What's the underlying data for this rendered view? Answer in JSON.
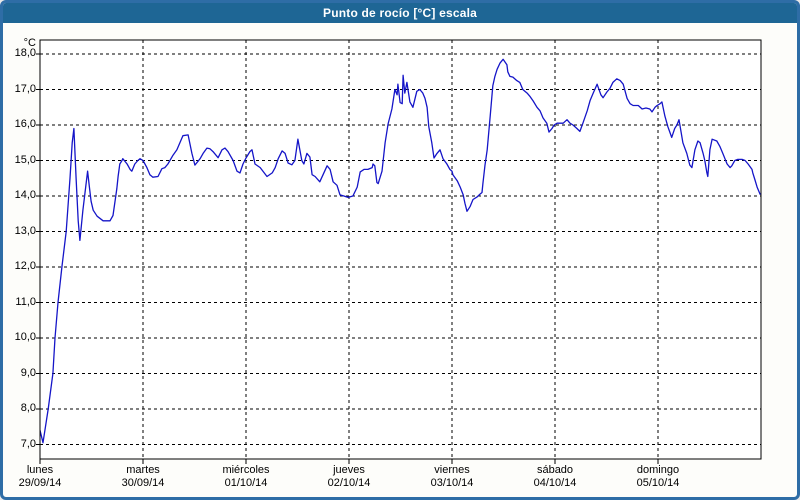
{
  "window": {
    "title": "Punto de rocío [°C] escala"
  },
  "colors": {
    "titlebar_bg": "#1e6695",
    "titlebar_text": "#ffffff",
    "window_border": "#2e6da6",
    "background": "#fdfdfa",
    "plot_background": "#ffffff",
    "grid_color": "#000000",
    "axis_color": "#000000",
    "series_color": "#1515c8"
  },
  "chart_data": {
    "type": "line",
    "title": "Punto de rocío [°C] escala",
    "ylabel": "°C",
    "unit_label": "°C",
    "y_tick_labels": [
      "18,0",
      "17,0",
      "16,0",
      "15,0",
      "14,0",
      "13,0",
      "12,0",
      "11,0",
      "10,0",
      "9,0",
      "8,0",
      "7,0"
    ],
    "y_tick_values": [
      18,
      17,
      16,
      15,
      14,
      13,
      12,
      11,
      10,
      9,
      8,
      7
    ],
    "ylim": [
      6.6,
      18.45
    ],
    "xlim_hours": [
      0,
      168
    ],
    "grid": "dashed",
    "legend_position": "none",
    "days": [
      {
        "name": "lunes",
        "date": "29/09/14"
      },
      {
        "name": "martes",
        "date": "30/09/14"
      },
      {
        "name": "miércoles",
        "date": "01/10/14"
      },
      {
        "name": "jueves",
        "date": "02/10/14"
      },
      {
        "name": "viernes",
        "date": "03/10/14"
      },
      {
        "name": "sábado",
        "date": "04/10/14"
      },
      {
        "name": "domingo",
        "date": "05/10/14"
      }
    ],
    "series": [
      {
        "name": "Punto de rocío",
        "color": "#1515c8",
        "points_hours_value": [
          [
            0,
            7.4
          ],
          [
            0.7,
            7.05
          ],
          [
            1.9,
            8.0
          ],
          [
            3.0,
            9.0
          ],
          [
            3.5,
            10.0
          ],
          [
            4.2,
            11.0
          ],
          [
            5.1,
            12.0
          ],
          [
            6.1,
            13.0
          ],
          [
            7.0,
            14.5
          ],
          [
            7.5,
            15.5
          ],
          [
            7.9,
            15.9
          ],
          [
            8.4,
            14.5
          ],
          [
            8.9,
            13.3
          ],
          [
            9.3,
            12.75
          ],
          [
            10.0,
            13.6
          ],
          [
            11.1,
            14.7
          ],
          [
            11.5,
            14.25
          ],
          [
            11.9,
            13.85
          ],
          [
            12.4,
            13.6
          ],
          [
            13.3,
            13.43
          ],
          [
            14.7,
            13.3
          ],
          [
            16.3,
            13.3
          ],
          [
            17.0,
            13.45
          ],
          [
            17.9,
            14.2
          ],
          [
            18.2,
            14.55
          ],
          [
            18.6,
            14.9
          ],
          [
            19.1,
            15.0
          ],
          [
            19.3,
            15.05
          ],
          [
            20.3,
            14.9
          ],
          [
            21.0,
            14.75
          ],
          [
            21.4,
            14.7
          ],
          [
            22.1,
            14.9
          ],
          [
            22.8,
            15.0
          ],
          [
            23.3,
            15.05
          ],
          [
            24.0,
            15.0
          ],
          [
            24.9,
            14.8
          ],
          [
            25.6,
            14.6
          ],
          [
            26.3,
            14.53
          ],
          [
            27.5,
            14.55
          ],
          [
            28.4,
            14.77
          ],
          [
            29.1,
            14.8
          ],
          [
            29.8,
            14.9
          ],
          [
            31.0,
            15.15
          ],
          [
            31.9,
            15.3
          ],
          [
            32.6,
            15.5
          ],
          [
            33.3,
            15.7
          ],
          [
            34.5,
            15.72
          ],
          [
            35.4,
            15.2
          ],
          [
            36.1,
            14.87
          ],
          [
            37.3,
            15.05
          ],
          [
            38.0,
            15.2
          ],
          [
            38.9,
            15.35
          ],
          [
            39.6,
            15.33
          ],
          [
            40.3,
            15.25
          ],
          [
            41.5,
            15.08
          ],
          [
            42.4,
            15.3
          ],
          [
            43.1,
            15.35
          ],
          [
            43.8,
            15.25
          ],
          [
            45.0,
            15.0
          ],
          [
            45.9,
            14.7
          ],
          [
            46.6,
            14.65
          ],
          [
            47.3,
            14.9
          ],
          [
            48.0,
            15.07
          ],
          [
            48.9,
            15.25
          ],
          [
            49.4,
            15.3
          ],
          [
            50.1,
            14.9
          ],
          [
            51.3,
            14.8
          ],
          [
            52.9,
            14.55
          ],
          [
            54.1,
            14.65
          ],
          [
            54.8,
            14.8
          ],
          [
            55.5,
            15.05
          ],
          [
            56.4,
            15.27
          ],
          [
            57.1,
            15.2
          ],
          [
            57.8,
            14.93
          ],
          [
            58.7,
            14.88
          ],
          [
            59.4,
            15.0
          ],
          [
            60.1,
            15.6
          ],
          [
            61.0,
            15.0
          ],
          [
            61.5,
            14.9
          ],
          [
            62.2,
            15.2
          ],
          [
            62.9,
            15.1
          ],
          [
            63.4,
            14.6
          ],
          [
            64.1,
            14.55
          ],
          [
            65.2,
            14.4
          ],
          [
            66.9,
            14.85
          ],
          [
            67.6,
            14.75
          ],
          [
            68.3,
            14.4
          ],
          [
            69.2,
            14.3
          ],
          [
            69.9,
            14.03
          ],
          [
            70.8,
            14.0
          ],
          [
            71.8,
            13.96
          ],
          [
            72.9,
            14.0
          ],
          [
            73.9,
            14.25
          ],
          [
            74.6,
            14.68
          ],
          [
            75.5,
            14.75
          ],
          [
            76.4,
            14.75
          ],
          [
            77.4,
            14.8
          ],
          [
            77.6,
            14.9
          ],
          [
            78.0,
            14.85
          ],
          [
            78.5,
            14.38
          ],
          [
            78.8,
            14.35
          ],
          [
            79.7,
            14.7
          ],
          [
            80.4,
            15.5
          ],
          [
            81.1,
            16.03
          ],
          [
            82.0,
            16.45
          ],
          [
            82.7,
            17.0
          ],
          [
            83.2,
            16.85
          ],
          [
            83.4,
            17.15
          ],
          [
            83.9,
            16.63
          ],
          [
            84.4,
            16.6
          ],
          [
            84.6,
            17.4
          ],
          [
            85.0,
            16.9
          ],
          [
            85.5,
            17.2
          ],
          [
            86.2,
            16.65
          ],
          [
            86.9,
            16.5
          ],
          [
            87.8,
            16.95
          ],
          [
            88.5,
            17.0
          ],
          [
            89.2,
            16.9
          ],
          [
            89.7,
            16.75
          ],
          [
            90.2,
            16.5
          ],
          [
            90.6,
            15.95
          ],
          [
            91.3,
            15.5
          ],
          [
            91.8,
            15.07
          ],
          [
            92.5,
            15.2
          ],
          [
            93.2,
            15.3
          ],
          [
            93.9,
            15.05
          ],
          [
            94.8,
            14.9
          ],
          [
            95.5,
            14.75
          ],
          [
            96.0,
            14.7
          ],
          [
            96.2,
            14.6
          ],
          [
            97.2,
            14.43
          ],
          [
            97.9,
            14.25
          ],
          [
            98.6,
            14.03
          ],
          [
            99.0,
            13.8
          ],
          [
            99.5,
            13.57
          ],
          [
            100.2,
            13.7
          ],
          [
            100.9,
            13.9
          ],
          [
            101.8,
            13.97
          ],
          [
            102.5,
            14.05
          ],
          [
            103.0,
            14.1
          ],
          [
            103.2,
            14.35
          ],
          [
            103.7,
            14.87
          ],
          [
            104.2,
            15.3
          ],
          [
            104.9,
            16.25
          ],
          [
            105.5,
            17.1
          ],
          [
            106.0,
            17.37
          ],
          [
            106.5,
            17.57
          ],
          [
            107.2,
            17.75
          ],
          [
            107.9,
            17.85
          ],
          [
            108.8,
            17.7
          ],
          [
            109.0,
            17.5
          ],
          [
            109.5,
            17.37
          ],
          [
            110.2,
            17.35
          ],
          [
            111.1,
            17.25
          ],
          [
            111.8,
            17.2
          ],
          [
            112.5,
            17.0
          ],
          [
            113.5,
            16.9
          ],
          [
            114.2,
            16.8
          ],
          [
            114.9,
            16.68
          ],
          [
            115.8,
            16.5
          ],
          [
            116.5,
            16.4
          ],
          [
            117.2,
            16.2
          ],
          [
            118.1,
            16.05
          ],
          [
            118.6,
            15.8
          ],
          [
            119.3,
            15.9
          ],
          [
            119.8,
            16.0
          ],
          [
            120.5,
            16.05
          ],
          [
            121.9,
            16.05
          ],
          [
            122.8,
            16.15
          ],
          [
            123.5,
            16.05
          ],
          [
            124.2,
            16.0
          ],
          [
            125.1,
            15.9
          ],
          [
            125.8,
            15.82
          ],
          [
            126.5,
            16.05
          ],
          [
            127.5,
            16.4
          ],
          [
            128.2,
            16.7
          ],
          [
            128.9,
            16.9
          ],
          [
            129.8,
            17.15
          ],
          [
            130.7,
            16.85
          ],
          [
            131.2,
            16.77
          ],
          [
            132.1,
            16.93
          ],
          [
            132.8,
            17.03
          ],
          [
            133.5,
            17.2
          ],
          [
            134.4,
            17.3
          ],
          [
            135.2,
            17.25
          ],
          [
            135.9,
            17.15
          ],
          [
            136.8,
            16.75
          ],
          [
            137.5,
            16.6
          ],
          [
            138.2,
            16.55
          ],
          [
            139.4,
            16.55
          ],
          [
            140.3,
            16.45
          ],
          [
            141.2,
            16.48
          ],
          [
            142.1,
            16.45
          ],
          [
            142.6,
            16.37
          ],
          [
            143.3,
            16.5
          ],
          [
            143.8,
            16.55
          ],
          [
            144.5,
            16.6
          ],
          [
            144.9,
            16.65
          ],
          [
            145.6,
            16.25
          ],
          [
            146.3,
            15.95
          ],
          [
            147.2,
            15.65
          ],
          [
            147.9,
            15.9
          ],
          [
            148.4,
            16.0
          ],
          [
            148.9,
            16.15
          ],
          [
            149.8,
            15.5
          ],
          [
            150.7,
            15.2
          ],
          [
            151.4,
            14.87
          ],
          [
            151.9,
            14.8
          ],
          [
            152.6,
            15.3
          ],
          [
            153.3,
            15.55
          ],
          [
            153.8,
            15.5
          ],
          [
            154.5,
            15.2
          ],
          [
            154.9,
            15.0
          ],
          [
            155.4,
            14.65
          ],
          [
            155.6,
            14.55
          ],
          [
            156.1,
            15.3
          ],
          [
            156.6,
            15.6
          ],
          [
            157.7,
            15.55
          ],
          [
            158.4,
            15.4
          ],
          [
            159.1,
            15.2
          ],
          [
            160.1,
            14.9
          ],
          [
            160.8,
            14.8
          ],
          [
            161.2,
            14.85
          ],
          [
            161.9,
            15.0
          ],
          [
            162.6,
            15.03
          ],
          [
            163.6,
            15.03
          ],
          [
            164.3,
            15.0
          ],
          [
            165.0,
            14.9
          ],
          [
            165.9,
            14.75
          ],
          [
            166.1,
            14.65
          ],
          [
            166.6,
            14.45
          ],
          [
            167.1,
            14.25
          ],
          [
            167.8,
            14.05
          ]
        ]
      }
    ]
  }
}
